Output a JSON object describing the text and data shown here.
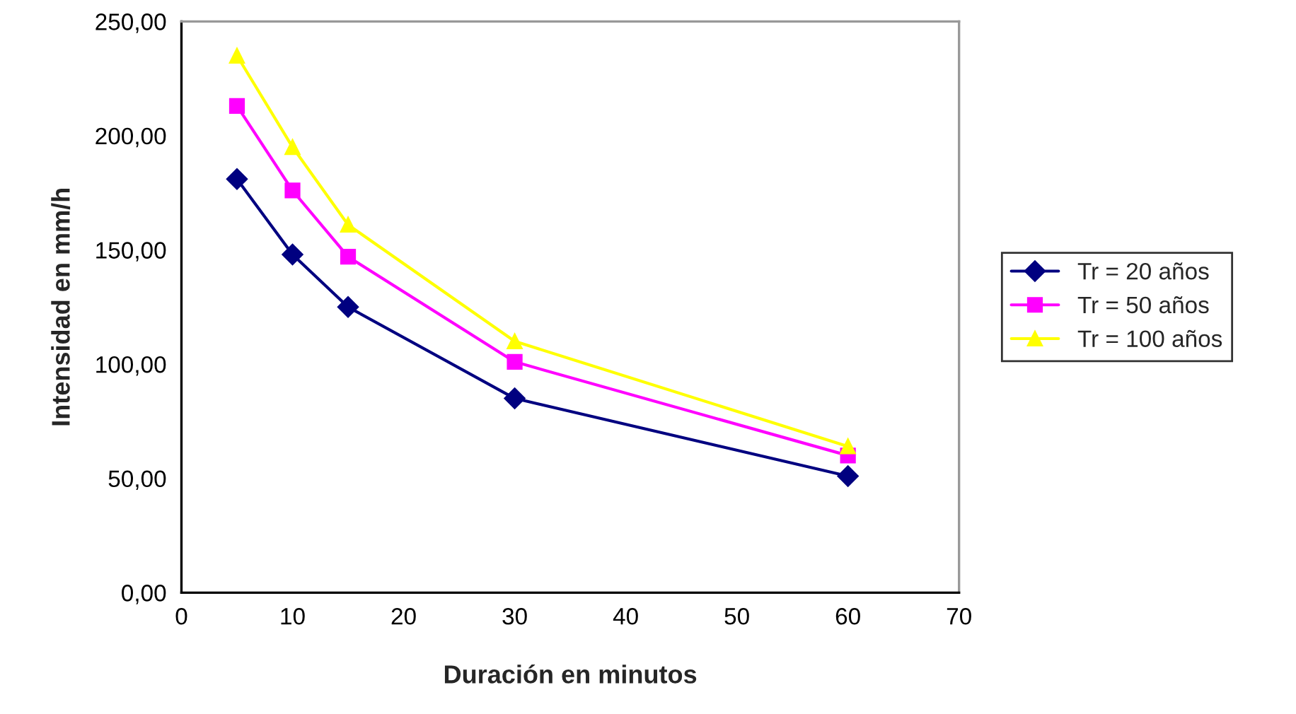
{
  "chart_data": {
    "type": "line",
    "xlabel": "Duración en minutos",
    "ylabel": "Intensidad en mm/h",
    "x": [
      5,
      10,
      15,
      30,
      60
    ],
    "series": [
      {
        "name": "Tr = 20 años",
        "color": "#000080",
        "marker": "diamond",
        "values": [
          181,
          148,
          125,
          85,
          51
        ]
      },
      {
        "name": "Tr = 50 años",
        "color": "#ff00ff",
        "marker": "square",
        "values": [
          213,
          176,
          147,
          101,
          60
        ]
      },
      {
        "name": "Tr = 100 años",
        "color": "#ffff00",
        "marker": "triangle",
        "values": [
          235,
          195,
          161,
          110,
          64
        ]
      }
    ],
    "xlim": [
      0,
      70
    ],
    "xticks": [
      0,
      10,
      20,
      30,
      40,
      50,
      60,
      70
    ],
    "ylim": [
      0,
      250
    ],
    "yticks": [
      {
        "value": 0,
        "label": "0,00"
      },
      {
        "value": 50,
        "label": "50,00"
      },
      {
        "value": 100,
        "label": "100,00"
      },
      {
        "value": 150,
        "label": "150,00"
      },
      {
        "value": 200,
        "label": "200,00"
      },
      {
        "value": 250,
        "label": "250,00"
      }
    ],
    "grid": false,
    "legend": "right"
  }
}
